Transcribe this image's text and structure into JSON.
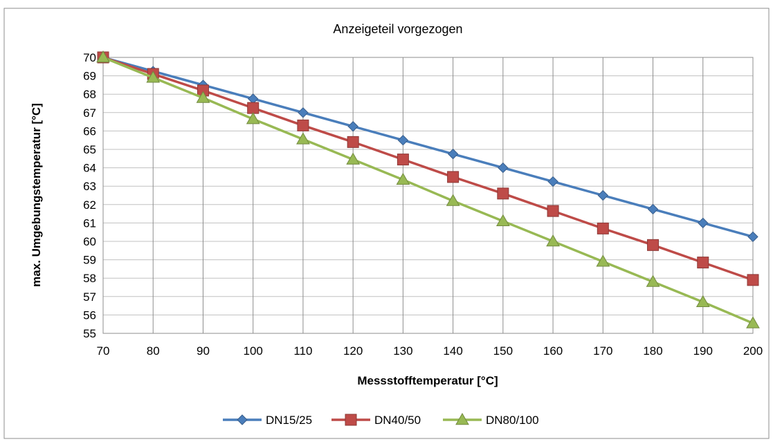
{
  "chart_data": {
    "type": "line",
    "title": "Anzeigeteil vorgezogen",
    "xlabel": "Messstofftemperatur [°C]",
    "ylabel": "max. Umgebungstemperatur [°C]",
    "x": [
      70,
      80,
      90,
      100,
      110,
      120,
      130,
      140,
      150,
      160,
      170,
      180,
      190,
      200
    ],
    "xlim": [
      70,
      200
    ],
    "ylim": [
      55,
      70
    ],
    "x_ticks": [
      "70",
      "80",
      "90",
      "100",
      "110",
      "120",
      "130",
      "140",
      "150",
      "160",
      "170",
      "180",
      "190",
      "200"
    ],
    "y_ticks": [
      "55",
      "56",
      "57",
      "58",
      "59",
      "60",
      "61",
      "62",
      "63",
      "64",
      "65",
      "66",
      "67",
      "68",
      "69",
      "70"
    ],
    "grid": true,
    "legend_position": "bottom",
    "series": [
      {
        "name": "DN15/25",
        "color": "#4a7ebb",
        "marker": "diamond",
        "values": [
          70.0,
          69.25,
          68.5,
          67.75,
          67.0,
          66.25,
          65.5,
          64.75,
          64.0,
          63.25,
          62.5,
          61.75,
          61.0,
          60.25
        ]
      },
      {
        "name": "DN40/50",
        "color": "#be4b48",
        "marker": "square",
        "values": [
          70.0,
          69.1,
          68.2,
          67.25,
          66.3,
          65.4,
          64.45,
          63.5,
          62.6,
          61.65,
          60.7,
          59.8,
          58.85,
          57.9
        ]
      },
      {
        "name": "DN80/100",
        "color": "#98b954",
        "marker": "triangle",
        "values": [
          70.0,
          68.9,
          67.8,
          66.65,
          65.55,
          64.45,
          63.35,
          62.2,
          61.1,
          60.0,
          58.9,
          57.8,
          56.7,
          55.55
        ]
      }
    ]
  }
}
